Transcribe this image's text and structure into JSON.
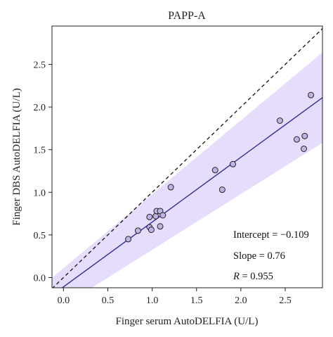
{
  "chart_data": {
    "type": "scatter",
    "title": "PAPP-A",
    "xlabel": "Finger serum AutoDELFIA (U/L)",
    "ylabel": "Finger DBS AutoDELFIA (U/L)",
    "xlim": [
      -0.13,
      2.92
    ],
    "ylim": [
      -0.12,
      2.95
    ],
    "xticks": [
      "0.0",
      "0.5",
      "1.0",
      "1.5",
      "2.0",
      "2.5"
    ],
    "yticks": [
      "0.0",
      "0.5",
      "1.0",
      "1.5",
      "2.0",
      "2.5"
    ],
    "grid": false,
    "points": [
      {
        "x": 0.73,
        "y": 0.45
      },
      {
        "x": 0.84,
        "y": 0.55
      },
      {
        "x": 0.97,
        "y": 0.59
      },
      {
        "x": 0.97,
        "y": 0.71
      },
      {
        "x": 0.99,
        "y": 0.56
      },
      {
        "x": 1.04,
        "y": 0.72
      },
      {
        "x": 1.05,
        "y": 0.78
      },
      {
        "x": 1.09,
        "y": 0.78
      },
      {
        "x": 1.09,
        "y": 0.6
      },
      {
        "x": 1.12,
        "y": 0.73
      },
      {
        "x": 1.21,
        "y": 1.06
      },
      {
        "x": 1.71,
        "y": 1.26
      },
      {
        "x": 1.79,
        "y": 1.03
      },
      {
        "x": 1.91,
        "y": 1.33
      },
      {
        "x": 2.44,
        "y": 1.84
      },
      {
        "x": 2.63,
        "y": 1.62
      },
      {
        "x": 2.71,
        "y": 1.51
      },
      {
        "x": 2.72,
        "y": 1.66
      },
      {
        "x": 2.79,
        "y": 2.14
      }
    ],
    "regression": {
      "intercept": -0.109,
      "slope": 0.76
    },
    "identity_line": {
      "slope": 1,
      "intercept": 0,
      "style": "dashed"
    },
    "prediction_band": {
      "lower_offset_at_x0": -0.22,
      "lower_offset_at_x2.92": -0.53,
      "upper_offset_at_x0": 0.22,
      "upper_offset_at_x2.92": 0.53
    },
    "annotations": {
      "intercept": "Intercept = −0.109",
      "slope": "Slope = 0.76",
      "r_label": "R",
      "r_value": " = 0.955"
    },
    "colors": {
      "band": "#e6dcfb",
      "regression_line": "#2a2f9a",
      "point_fill": "#bfb3e3",
      "point_stroke": "#222222",
      "identity_line": "#111111"
    }
  }
}
